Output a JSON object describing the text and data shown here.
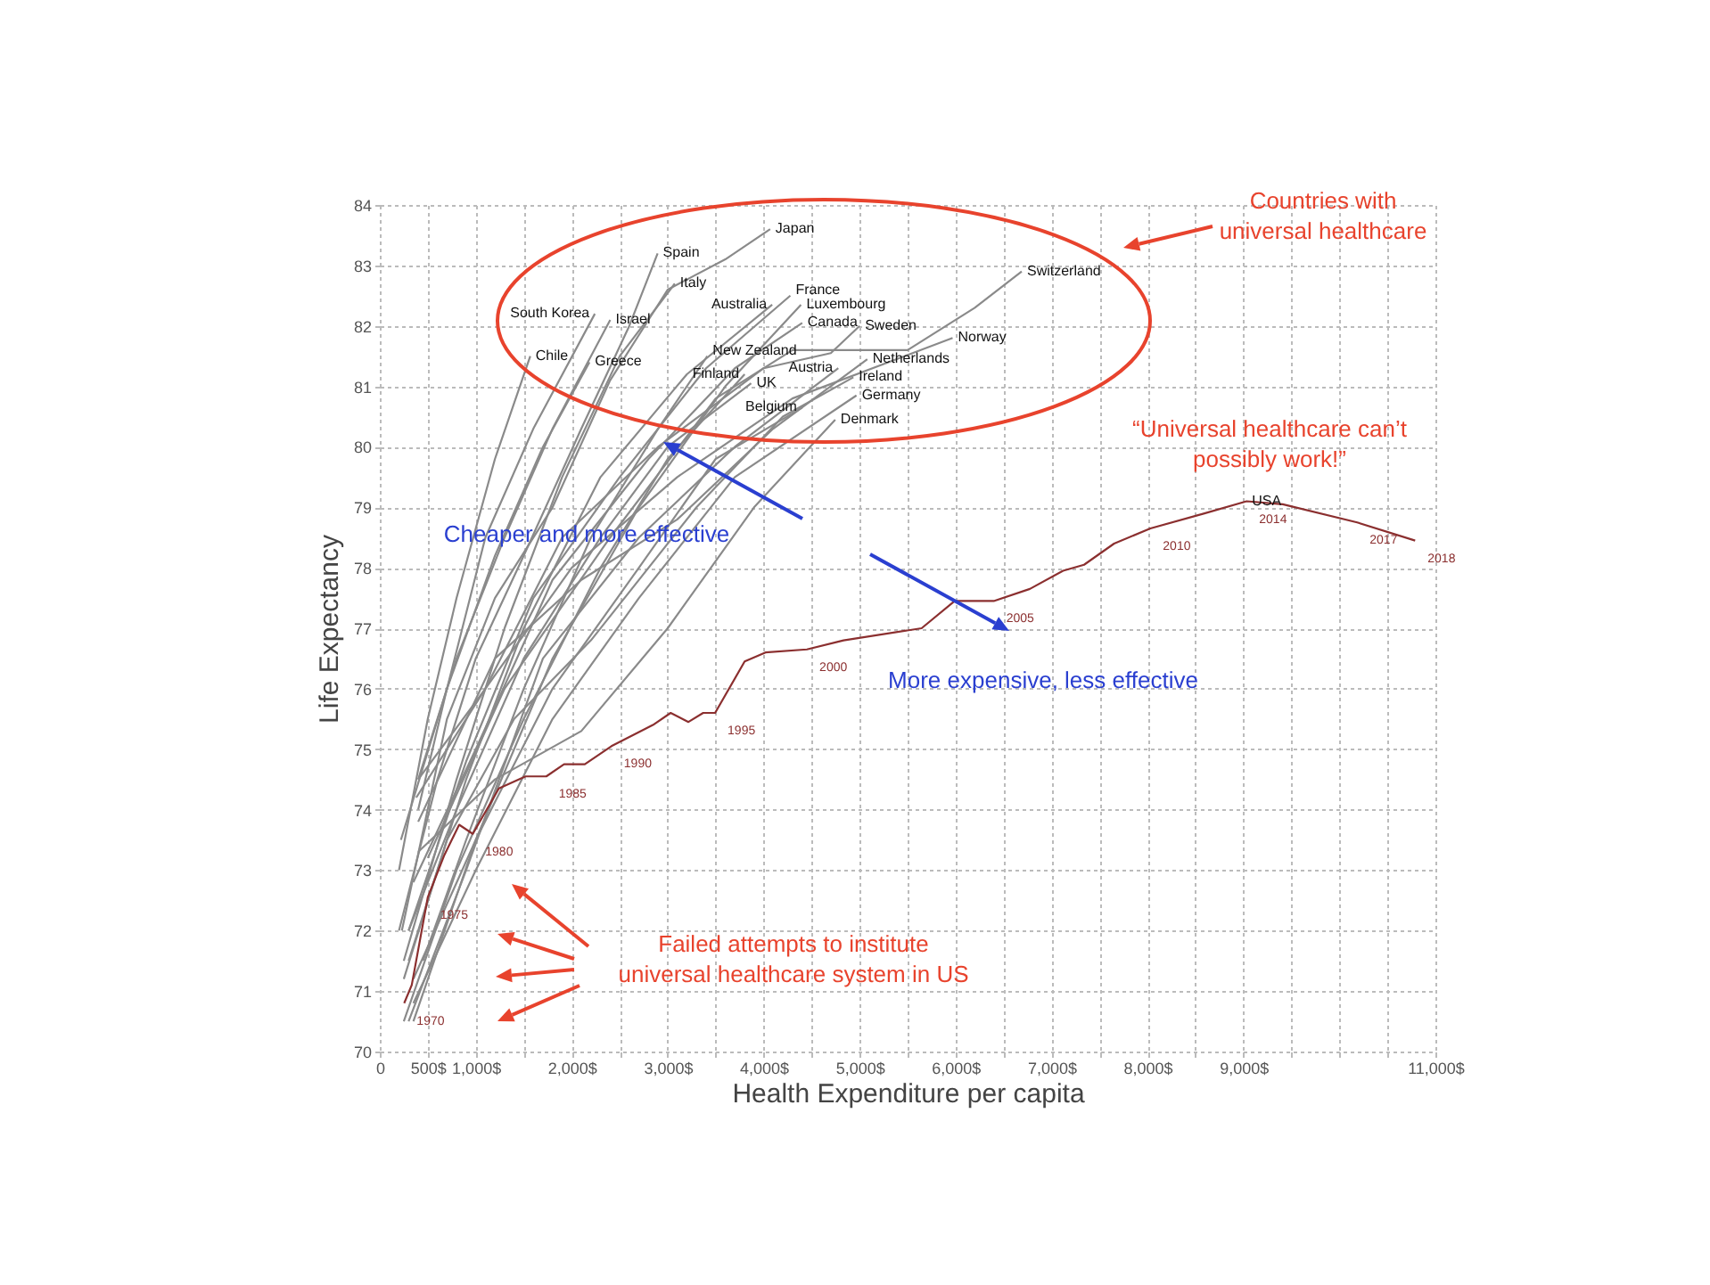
{
  "chart_data": {
    "type": "line",
    "xlabel": "Health Expenditure per capita",
    "ylabel": "Life Expectancy",
    "xlim": [
      0,
      11000
    ],
    "ylim": [
      70,
      84
    ],
    "xticks": [
      0,
      {
        "value": 500,
        "label": "500$"
      },
      {
        "value": 1000,
        "label": "1,000$"
      },
      {
        "value": 1500,
        "label": null
      },
      {
        "value": 2000,
        "label": "2,000$"
      },
      {
        "value": 2500,
        "label": null
      },
      {
        "value": 3000,
        "label": "3,000$"
      },
      {
        "value": 3500,
        "label": null
      },
      {
        "value": 4000,
        "label": "4,000$"
      },
      {
        "value": 4500,
        "label": null
      },
      {
        "value": 5000,
        "label": "5,000$"
      },
      {
        "value": 5500,
        "label": null
      },
      {
        "value": 6000,
        "label": "6,000$"
      },
      {
        "value": 6500,
        "label": null
      },
      {
        "value": 7000,
        "label": "7,000$"
      },
      {
        "value": 7500,
        "label": null
      },
      {
        "value": 8000,
        "label": "8,000$"
      },
      {
        "value": 8500,
        "label": null
      },
      {
        "value": 9000,
        "label": "9,000$"
      },
      {
        "value": 9500,
        "label": null
      },
      {
        "value": 10000,
        "label": null
      },
      {
        "value": 10500,
        "label": null
      },
      {
        "value": 11000,
        "label": "11,000$"
      }
    ],
    "yticks": [
      70,
      71,
      72,
      73,
      74,
      75,
      76,
      77,
      78,
      79,
      80,
      81,
      82,
      83,
      84
    ],
    "grid": true,
    "series": [
      {
        "name": "Japan",
        "color": "#8a8a8a",
        "x": [
          230,
          700,
          1200,
          1800,
          2400,
          3000,
          3600,
          4068
        ],
        "values": [
          72,
          75.5,
          77.5,
          79,
          81.1,
          82.6,
          83.1,
          83.6
        ]
      },
      {
        "name": "Spain",
        "color": "#8a8a8a",
        "x": [
          200,
          600,
          1000,
          1500,
          2100,
          2600,
          2895
        ],
        "values": [
          72,
          74.5,
          76.5,
          78.2,
          80.3,
          82,
          83.2
        ]
      },
      {
        "name": "Italy",
        "color": "#8a8a8a",
        "x": [
          250,
          800,
          1300,
          1900,
          2500,
          3074
        ],
        "values": [
          71.5,
          74.5,
          77,
          79.5,
          81.5,
          82.7
        ]
      },
      {
        "name": "South Korea",
        "color": "#8a8a8a",
        "x": [
          400,
          700,
          1100,
          1600,
          2241
        ],
        "values": [
          74,
          76,
          78.5,
          80.3,
          82.2
        ]
      },
      {
        "name": "Israel",
        "color": "#8a8a8a",
        "x": [
          400,
          800,
          1300,
          1800,
          2401
        ],
        "values": [
          74.5,
          76.5,
          78.5,
          80.3,
          82.1
        ]
      },
      {
        "name": "Chile",
        "color": "#8a8a8a",
        "x": [
          200,
          500,
          800,
          1200,
          1568
        ],
        "values": [
          73,
          75.5,
          77.5,
          79.8,
          81.5
        ]
      },
      {
        "name": "Greece",
        "color": "#8a8a8a",
        "x": [
          220,
          700,
          1200,
          1700,
          2185
        ],
        "values": [
          73.5,
          76,
          78.2,
          80,
          81.4
        ]
      },
      {
        "name": "Australia",
        "color": "#8a8a8a",
        "x": [
          300,
          900,
          1500,
          2300,
          3200,
          4089
        ],
        "values": [
          71.5,
          74.5,
          77,
          79.5,
          81.2,
          82.35
        ]
      },
      {
        "name": "France",
        "color": "#8a8a8a",
        "x": [
          300,
          900,
          1600,
          2500,
          3400,
          4278
        ],
        "values": [
          72,
          74.8,
          77.5,
          79.5,
          81.3,
          82.5
        ]
      },
      {
        "name": "Luxembourg",
        "color": "#8a8a8a",
        "x": [
          350,
          1000,
          1800,
          2700,
          3600,
          4389
        ],
        "values": [
          70.5,
          73.5,
          76.5,
          79,
          81,
          82.35
        ]
      },
      {
        "name": "Canada",
        "color": "#8a8a8a",
        "x": [
          350,
          1000,
          1800,
          2800,
          3700,
          4402
        ],
        "values": [
          72.8,
          75,
          77.8,
          79.8,
          81.3,
          82.05
        ]
      },
      {
        "name": "Sweden",
        "color": "#8a8a8a",
        "x": [
          400,
          1100,
          1900,
          2900,
          4000,
          4700,
          5000
        ],
        "values": [
          74.5,
          76,
          78.5,
          80,
          81.3,
          81.55,
          82
        ]
      },
      {
        "name": "Switzerland",
        "color": "#8a8a8a",
        "x": [
          500,
          1300,
          2400,
          3500,
          4300,
          5500,
          6200,
          6689
        ],
        "values": [
          73.2,
          76,
          78.5,
          80.8,
          81.6,
          81.6,
          82.3,
          82.9
        ]
      },
      {
        "name": "Norway",
        "color": "#8a8a8a",
        "x": [
          380,
          1100,
          2000,
          3100,
          4300,
          5969
        ],
        "values": [
          74.2,
          76,
          78,
          79.5,
          80.8,
          81.8
        ]
      },
      {
        "name": "Austria",
        "color": "#8a8a8a",
        "x": [
          300,
          900,
          1700,
          2700,
          3700,
          4778
        ],
        "values": [
          70.5,
          73,
          76.5,
          78.5,
          80,
          81.3
        ]
      },
      {
        "name": "Netherlands",
        "color": "#8a8a8a",
        "x": [
          400,
          1200,
          2100,
          3100,
          4100,
          5080
        ],
        "values": [
          73.8,
          76.5,
          77.8,
          78.8,
          80.3,
          81.45
        ]
      },
      {
        "name": "Ireland",
        "color": "#8a8a8a",
        "x": [
          250,
          700,
          1400,
          2200,
          3300,
          4200,
          4935
        ],
        "values": [
          71.2,
          73.5,
          75.5,
          76.8,
          79,
          80.5,
          81.15
        ]
      },
      {
        "name": "Germany",
        "color": "#8a8a8a",
        "x": [
          350,
          1000,
          1800,
          2700,
          3700,
          4967
        ],
        "values": [
          70.8,
          73,
          75.5,
          77.5,
          79.5,
          80.85
        ]
      },
      {
        "name": "Belgium",
        "color": "#8a8a8a",
        "x": [
          350,
          1000,
          1800,
          2700,
          3500,
          4402
        ],
        "values": [
          71.2,
          73.5,
          76,
          78,
          79.8,
          80.65
        ]
      },
      {
        "name": "Denmark",
        "color": "#8a8a8a",
        "x": [
          400,
          1200,
          2100,
          3000,
          3900,
          4746
        ],
        "values": [
          73.3,
          74.5,
          75.3,
          77,
          79,
          80.45
        ]
      },
      {
        "name": "New Zealand",
        "color": "#8a8a8a",
        "x": [
          450,
          900,
          1500,
          2200,
          2900,
          3413
        ],
        "values": [
          71.5,
          73.5,
          76,
          78.5,
          80.3,
          81.5
        ]
      },
      {
        "name": "Finland",
        "color": "#8a8a8a",
        "x": [
          250,
          800,
          1500,
          2300,
          3000,
          3802
        ],
        "values": [
          70.5,
          73,
          75.5,
          78,
          79.8,
          81.2
        ]
      },
      {
        "name": "UK",
        "color": "#8a8a8a",
        "x": [
          300,
          800,
          1500,
          2300,
          3000,
          3870
        ],
        "values": [
          72,
          74,
          76.5,
          78.5,
          80,
          81.05
        ]
      },
      {
        "name": "USA",
        "color": "#8b2f2f",
        "x": [
          254,
          333,
          500,
          673,
          827,
          969,
          1241,
          1519,
          1735,
          1920,
          2136,
          2414,
          2846,
          3031,
          3216,
          3370,
          3494,
          3802,
          4019,
          4451,
          4832,
          5646,
          5991,
          6398,
          6774,
          7120,
          7339,
          7652,
          8030,
          8593,
          9033,
          9409,
          10185,
          10789
        ],
        "values": [
          70.8,
          71.1,
          72.55,
          73.25,
          73.75,
          73.6,
          74.35,
          74.55,
          74.55,
          74.75,
          74.75,
          75.05,
          75.4,
          75.6,
          75.45,
          75.6,
          75.6,
          76.45,
          76.6,
          76.65,
          76.8,
          77,
          77.45,
          77.45,
          77.65,
          77.95,
          78.05,
          78.4,
          78.65,
          78.9,
          79.1,
          79.05,
          78.75,
          78.45
        ]
      }
    ],
    "annotations": [
      "Countries with\nuniversal healthcare",
      "“Universal healthcare can’t\npossibly work!”",
      "Cheaper and more effective",
      "More expensive, less effective",
      "Failed attempts to institute\nuniversal healthcare system in US",
      {
        "text": "1970",
        "x": 254,
        "y": 70.8
      },
      {
        "text": "1975",
        "x": 500,
        "y": 72.55
      },
      {
        "text": "1980",
        "x": 969,
        "y": 73.6
      },
      {
        "text": "1985",
        "x": 1735,
        "y": 74.55
      },
      {
        "text": "1990",
        "x": 2414,
        "y": 75.05
      },
      {
        "text": "1995",
        "x": 3494,
        "y": 75.6
      },
      {
        "text": "2000",
        "x": 4451,
        "y": 76.65
      },
      {
        "text": "2005",
        "x": 6398,
        "y": 77.45
      },
      {
        "text": "2010",
        "x": 8030,
        "y": 78.65
      },
      {
        "text": "2014",
        "x": 9033,
        "y": 79.1
      },
      {
        "text": "2017",
        "x": 10185,
        "y": 78.75
      },
      {
        "text": "2018",
        "x": 10789,
        "y": 78.45
      }
    ]
  }
}
